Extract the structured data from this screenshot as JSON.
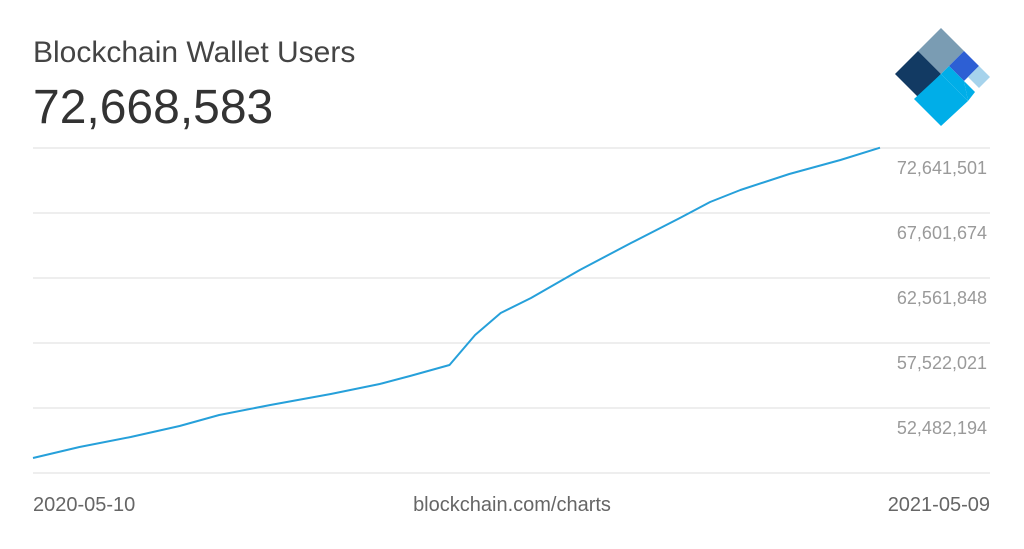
{
  "chart_data": {
    "type": "line",
    "title": "Blockchain Wallet Users",
    "headline": "72,668,583",
    "source": "blockchain.com/charts",
    "x": [
      "2020-05-10",
      "2020-05-30",
      "2020-06-21",
      "2020-07-12",
      "2020-07-29",
      "2020-08-20",
      "2020-09-15",
      "2020-10-06",
      "2020-10-19",
      "2020-11-05",
      "2020-11-16",
      "2020-11-27",
      "2020-12-10",
      "2020-12-31",
      "2021-01-22",
      "2021-02-12",
      "2021-02-25",
      "2021-03-10",
      "2021-03-31",
      "2021-04-22",
      "2021-05-09"
    ],
    "series": [
      {
        "name": "Blockchain Wallet Users",
        "color": "#26a0da",
        "values": [
          48605404,
          49458298,
          50233656,
          51086550,
          51939444,
          52714802,
          53567696,
          54343054,
          54963340,
          55816233,
          58142307,
          59848095,
          61011132,
          63182134,
          65275603,
          67213996,
          68454568,
          69384997,
          70625570,
          71711073,
          72668583
        ]
      }
    ],
    "ylim": [
      47442367,
      72641501
    ],
    "yticks": [
      {
        "value": 52482194,
        "label": "52,482,194"
      },
      {
        "value": 57522021,
        "label": "57,522,021"
      },
      {
        "value": 62561848,
        "label": "62,561,848"
      },
      {
        "value": 67601674,
        "label": "67,601,674"
      },
      {
        "value": 72641501,
        "label": "72,641,501"
      }
    ],
    "grid": true
  }
}
